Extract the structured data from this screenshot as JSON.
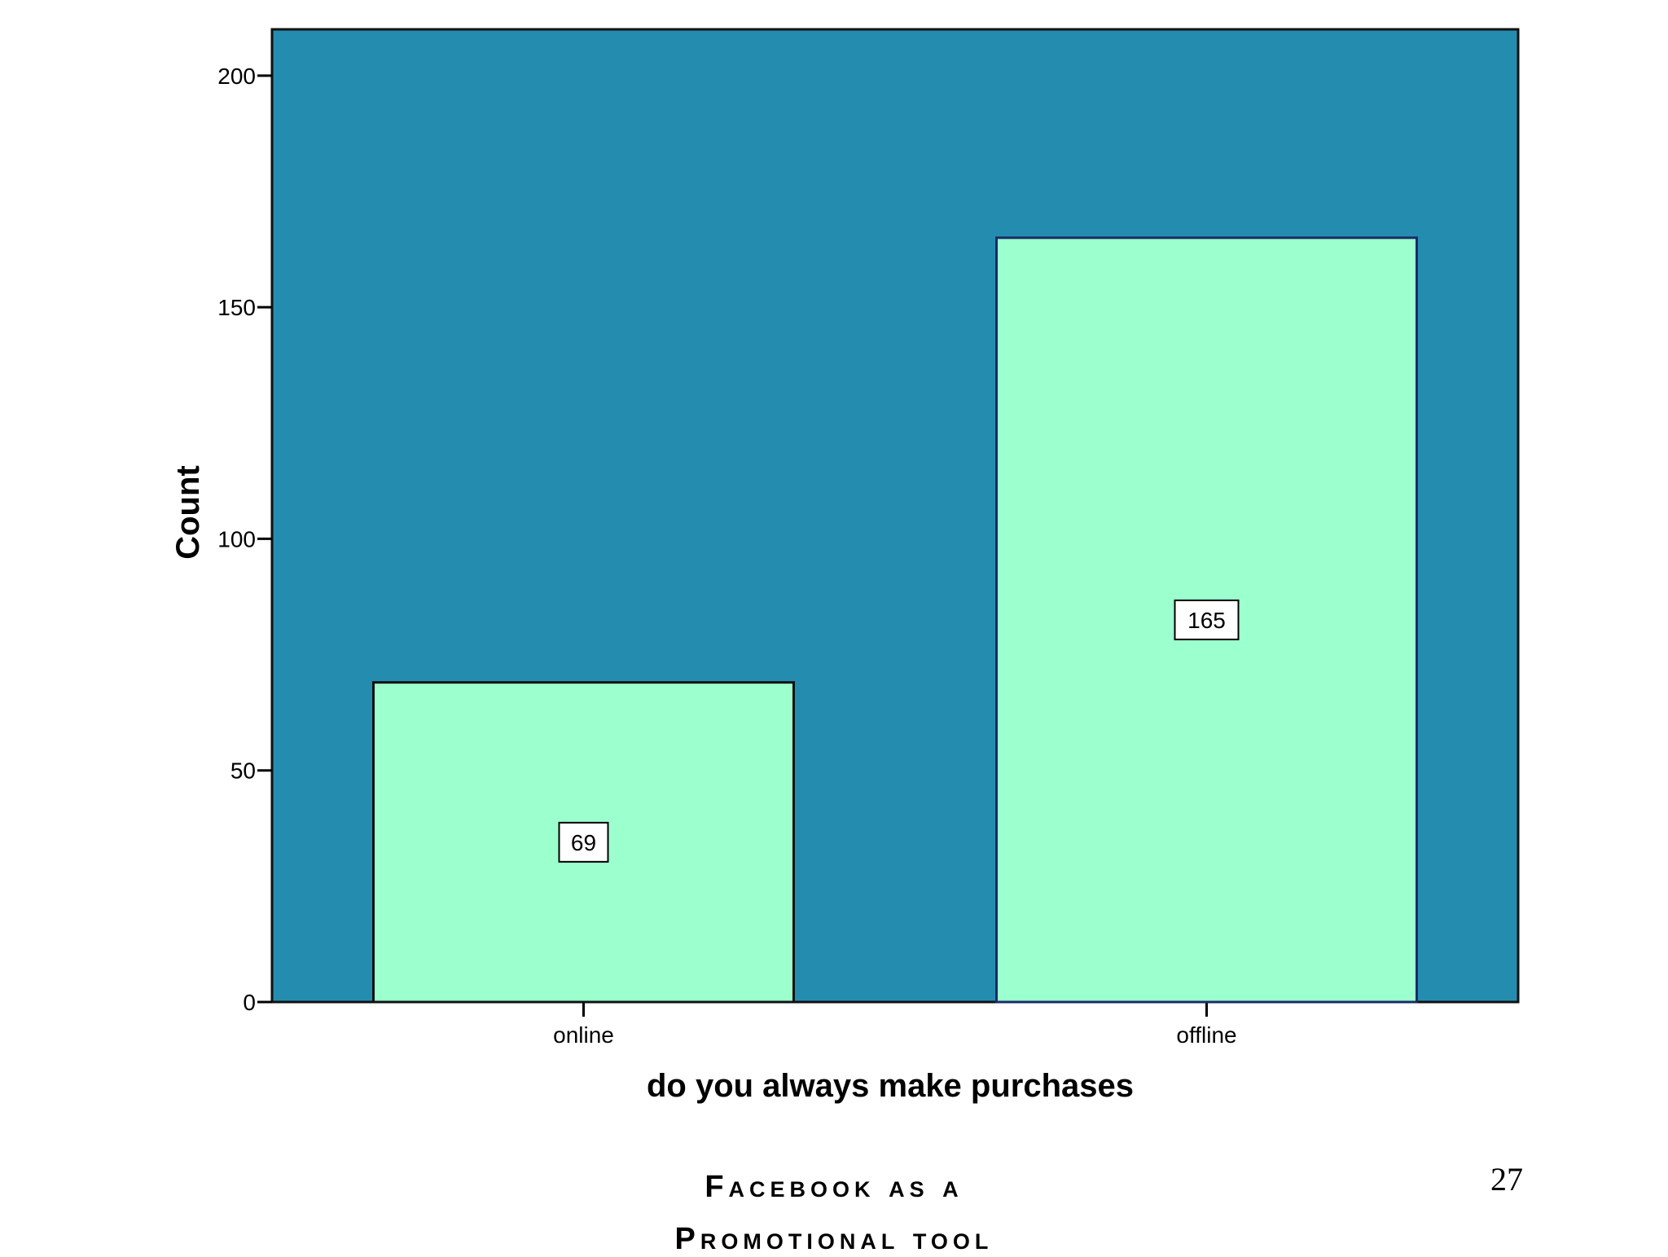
{
  "chart_data": {
    "type": "bar",
    "categories": [
      "online",
      "offline"
    ],
    "values": [
      69,
      165
    ],
    "data_labels": [
      "69",
      "165"
    ],
    "xlabel": "do you always make purchases",
    "ylabel": "Count",
    "ylim": [
      0,
      210
    ],
    "yticks": [
      0,
      50,
      100,
      150,
      200
    ],
    "ytick_labels": [
      "0",
      "50",
      "100",
      "150",
      "200"
    ],
    "grid": false,
    "legend": "none",
    "colors": {
      "plot_background": "#248DAF",
      "bar_fill": "#9BFFCE",
      "bar_edge_online": "#111111",
      "bar_edge_offline": "#1B2A66"
    }
  },
  "footer": {
    "title_line_1": "Facebook as a",
    "title_line_2": "Promotional tool",
    "page_number": "27"
  }
}
